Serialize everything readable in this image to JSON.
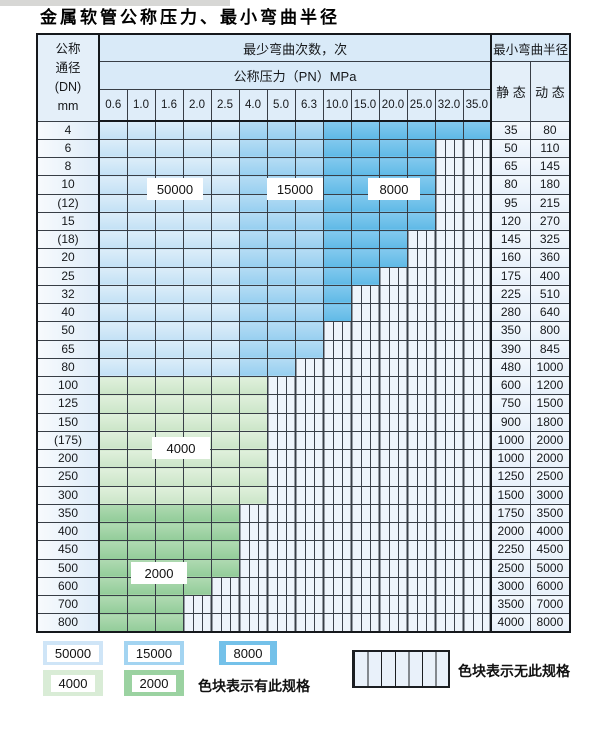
{
  "page_title": "金属软管公称压力、最小弯曲半径",
  "table": {
    "dn_header_lines": [
      "公称",
      "通径",
      "(DN)",
      "mm"
    ],
    "bend_times_header": "最少弯曲次数，次",
    "pn_header": "公称压力（PN）MPa",
    "min_radius_header": "最小弯曲半径",
    "static_header": "静 态",
    "dynamic_header": "动 态",
    "pressures": [
      "0.6",
      "1.0",
      "1.6",
      "2.0",
      "2.5",
      "4.0",
      "5.0",
      "6.3",
      "10.0",
      "15.0",
      "20.0",
      "25.0",
      "32.0",
      "35.0"
    ],
    "rows": [
      {
        "dn": "4",
        "colored": 14,
        "zone": "blue",
        "static": "35",
        "dynamic": "80"
      },
      {
        "dn": "6",
        "colored": 12,
        "zone": "blue",
        "static": "50",
        "dynamic": "110"
      },
      {
        "dn": "8",
        "colored": 12,
        "zone": "blue",
        "static": "65",
        "dynamic": "145"
      },
      {
        "dn": "10",
        "colored": 12,
        "zone": "blue",
        "static": "80",
        "dynamic": "180"
      },
      {
        "dn": "(12)",
        "colored": 12,
        "zone": "blue",
        "static": "95",
        "dynamic": "215"
      },
      {
        "dn": "15",
        "colored": 12,
        "zone": "blue",
        "static": "120",
        "dynamic": "270"
      },
      {
        "dn": "(18)",
        "colored": 11,
        "zone": "blue",
        "static": "145",
        "dynamic": "325"
      },
      {
        "dn": "20",
        "colored": 11,
        "zone": "blue",
        "static": "160",
        "dynamic": "360"
      },
      {
        "dn": "25",
        "colored": 10,
        "zone": "blue",
        "static": "175",
        "dynamic": "400"
      },
      {
        "dn": "32",
        "colored": 9,
        "zone": "blue",
        "static": "225",
        "dynamic": "510"
      },
      {
        "dn": "40",
        "colored": 9,
        "zone": "blue",
        "static": "280",
        "dynamic": "640"
      },
      {
        "dn": "50",
        "colored": 8,
        "zone": "blue",
        "static": "350",
        "dynamic": "800"
      },
      {
        "dn": "65",
        "colored": 8,
        "zone": "blue",
        "static": "390",
        "dynamic": "845"
      },
      {
        "dn": "80",
        "colored": 7,
        "zone": "blue",
        "static": "480",
        "dynamic": "1000"
      },
      {
        "dn": "100",
        "colored": 6,
        "zone": "green4000",
        "static": "600",
        "dynamic": "1200"
      },
      {
        "dn": "125",
        "colored": 6,
        "zone": "green4000",
        "static": "750",
        "dynamic": "1500"
      },
      {
        "dn": "150",
        "colored": 6,
        "zone": "green4000",
        "static": "900",
        "dynamic": "1800"
      },
      {
        "dn": "(175)",
        "colored": 6,
        "zone": "green4000",
        "static": "1000",
        "dynamic": "2000"
      },
      {
        "dn": "200",
        "colored": 6,
        "zone": "green4000",
        "static": "1000",
        "dynamic": "2000"
      },
      {
        "dn": "250",
        "colored": 6,
        "zone": "green4000",
        "static": "1250",
        "dynamic": "2500"
      },
      {
        "dn": "300",
        "colored": 6,
        "zone": "green4000",
        "static": "1500",
        "dynamic": "3000"
      },
      {
        "dn": "350",
        "colored": 5,
        "zone": "green2000",
        "static": "1750",
        "dynamic": "3500"
      },
      {
        "dn": "400",
        "colored": 5,
        "zone": "green2000",
        "static": "2000",
        "dynamic": "4000"
      },
      {
        "dn": "450",
        "colored": 5,
        "zone": "green2000",
        "static": "2250",
        "dynamic": "4500"
      },
      {
        "dn": "500",
        "colored": 5,
        "zone": "green2000",
        "static": "2500",
        "dynamic": "5000"
      },
      {
        "dn": "600",
        "colored": 4,
        "zone": "green2000",
        "static": "3000",
        "dynamic": "6000"
      },
      {
        "dn": "700",
        "colored": 3,
        "zone": "green2000",
        "static": "3500",
        "dynamic": "7000"
      },
      {
        "dn": "800",
        "colored": 3,
        "zone": "green2000",
        "static": "4000",
        "dynamic": "8000"
      }
    ]
  },
  "zone_labels": {
    "z50000": "50000",
    "z15000": "15000",
    "z8000": "8000",
    "z4000": "4000",
    "z2000": "2000"
  },
  "legend": {
    "has_spec_text": "色块表示有此规格",
    "no_spec_text": "色块表示无此规格"
  },
  "colors": {
    "blue_50000": "#cfe5f7",
    "blue_15000": "#a3d4f1",
    "blue_8000": "#74c1e9",
    "green_4000": "#d9ecd6",
    "green_2000": "#9bd2a1",
    "hatch_bg": "#eef4fb",
    "header_bg": "#d9eaf8"
  }
}
